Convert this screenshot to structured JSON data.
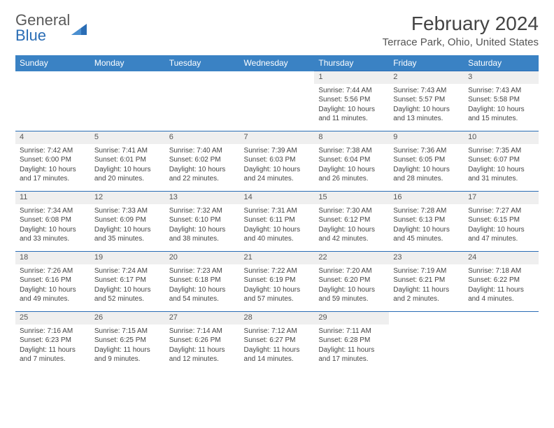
{
  "brand": {
    "general": "General",
    "blue": "Blue"
  },
  "title": "February 2024",
  "location": "Terrace Park, Ohio, United States",
  "header_bg": "#3a82c4",
  "border_color": "#2a6db5",
  "weekdays": [
    "Sunday",
    "Monday",
    "Tuesday",
    "Wednesday",
    "Thursday",
    "Friday",
    "Saturday"
  ],
  "weeks": [
    [
      null,
      null,
      null,
      null,
      {
        "n": "1",
        "sr": "Sunrise: 7:44 AM",
        "ss": "Sunset: 5:56 PM",
        "dl1": "Daylight: 10 hours",
        "dl2": "and 11 minutes."
      },
      {
        "n": "2",
        "sr": "Sunrise: 7:43 AM",
        "ss": "Sunset: 5:57 PM",
        "dl1": "Daylight: 10 hours",
        "dl2": "and 13 minutes."
      },
      {
        "n": "3",
        "sr": "Sunrise: 7:43 AM",
        "ss": "Sunset: 5:58 PM",
        "dl1": "Daylight: 10 hours",
        "dl2": "and 15 minutes."
      }
    ],
    [
      {
        "n": "4",
        "sr": "Sunrise: 7:42 AM",
        "ss": "Sunset: 6:00 PM",
        "dl1": "Daylight: 10 hours",
        "dl2": "and 17 minutes."
      },
      {
        "n": "5",
        "sr": "Sunrise: 7:41 AM",
        "ss": "Sunset: 6:01 PM",
        "dl1": "Daylight: 10 hours",
        "dl2": "and 20 minutes."
      },
      {
        "n": "6",
        "sr": "Sunrise: 7:40 AM",
        "ss": "Sunset: 6:02 PM",
        "dl1": "Daylight: 10 hours",
        "dl2": "and 22 minutes."
      },
      {
        "n": "7",
        "sr": "Sunrise: 7:39 AM",
        "ss": "Sunset: 6:03 PM",
        "dl1": "Daylight: 10 hours",
        "dl2": "and 24 minutes."
      },
      {
        "n": "8",
        "sr": "Sunrise: 7:38 AM",
        "ss": "Sunset: 6:04 PM",
        "dl1": "Daylight: 10 hours",
        "dl2": "and 26 minutes."
      },
      {
        "n": "9",
        "sr": "Sunrise: 7:36 AM",
        "ss": "Sunset: 6:05 PM",
        "dl1": "Daylight: 10 hours",
        "dl2": "and 28 minutes."
      },
      {
        "n": "10",
        "sr": "Sunrise: 7:35 AM",
        "ss": "Sunset: 6:07 PM",
        "dl1": "Daylight: 10 hours",
        "dl2": "and 31 minutes."
      }
    ],
    [
      {
        "n": "11",
        "sr": "Sunrise: 7:34 AM",
        "ss": "Sunset: 6:08 PM",
        "dl1": "Daylight: 10 hours",
        "dl2": "and 33 minutes."
      },
      {
        "n": "12",
        "sr": "Sunrise: 7:33 AM",
        "ss": "Sunset: 6:09 PM",
        "dl1": "Daylight: 10 hours",
        "dl2": "and 35 minutes."
      },
      {
        "n": "13",
        "sr": "Sunrise: 7:32 AM",
        "ss": "Sunset: 6:10 PM",
        "dl1": "Daylight: 10 hours",
        "dl2": "and 38 minutes."
      },
      {
        "n": "14",
        "sr": "Sunrise: 7:31 AM",
        "ss": "Sunset: 6:11 PM",
        "dl1": "Daylight: 10 hours",
        "dl2": "and 40 minutes."
      },
      {
        "n": "15",
        "sr": "Sunrise: 7:30 AM",
        "ss": "Sunset: 6:12 PM",
        "dl1": "Daylight: 10 hours",
        "dl2": "and 42 minutes."
      },
      {
        "n": "16",
        "sr": "Sunrise: 7:28 AM",
        "ss": "Sunset: 6:13 PM",
        "dl1": "Daylight: 10 hours",
        "dl2": "and 45 minutes."
      },
      {
        "n": "17",
        "sr": "Sunrise: 7:27 AM",
        "ss": "Sunset: 6:15 PM",
        "dl1": "Daylight: 10 hours",
        "dl2": "and 47 minutes."
      }
    ],
    [
      {
        "n": "18",
        "sr": "Sunrise: 7:26 AM",
        "ss": "Sunset: 6:16 PM",
        "dl1": "Daylight: 10 hours",
        "dl2": "and 49 minutes."
      },
      {
        "n": "19",
        "sr": "Sunrise: 7:24 AM",
        "ss": "Sunset: 6:17 PM",
        "dl1": "Daylight: 10 hours",
        "dl2": "and 52 minutes."
      },
      {
        "n": "20",
        "sr": "Sunrise: 7:23 AM",
        "ss": "Sunset: 6:18 PM",
        "dl1": "Daylight: 10 hours",
        "dl2": "and 54 minutes."
      },
      {
        "n": "21",
        "sr": "Sunrise: 7:22 AM",
        "ss": "Sunset: 6:19 PM",
        "dl1": "Daylight: 10 hours",
        "dl2": "and 57 minutes."
      },
      {
        "n": "22",
        "sr": "Sunrise: 7:20 AM",
        "ss": "Sunset: 6:20 PM",
        "dl1": "Daylight: 10 hours",
        "dl2": "and 59 minutes."
      },
      {
        "n": "23",
        "sr": "Sunrise: 7:19 AM",
        "ss": "Sunset: 6:21 PM",
        "dl1": "Daylight: 11 hours",
        "dl2": "and 2 minutes."
      },
      {
        "n": "24",
        "sr": "Sunrise: 7:18 AM",
        "ss": "Sunset: 6:22 PM",
        "dl1": "Daylight: 11 hours",
        "dl2": "and 4 minutes."
      }
    ],
    [
      {
        "n": "25",
        "sr": "Sunrise: 7:16 AM",
        "ss": "Sunset: 6:23 PM",
        "dl1": "Daylight: 11 hours",
        "dl2": "and 7 minutes."
      },
      {
        "n": "26",
        "sr": "Sunrise: 7:15 AM",
        "ss": "Sunset: 6:25 PM",
        "dl1": "Daylight: 11 hours",
        "dl2": "and 9 minutes."
      },
      {
        "n": "27",
        "sr": "Sunrise: 7:14 AM",
        "ss": "Sunset: 6:26 PM",
        "dl1": "Daylight: 11 hours",
        "dl2": "and 12 minutes."
      },
      {
        "n": "28",
        "sr": "Sunrise: 7:12 AM",
        "ss": "Sunset: 6:27 PM",
        "dl1": "Daylight: 11 hours",
        "dl2": "and 14 minutes."
      },
      {
        "n": "29",
        "sr": "Sunrise: 7:11 AM",
        "ss": "Sunset: 6:28 PM",
        "dl1": "Daylight: 11 hours",
        "dl2": "and 17 minutes."
      },
      null,
      null
    ]
  ]
}
